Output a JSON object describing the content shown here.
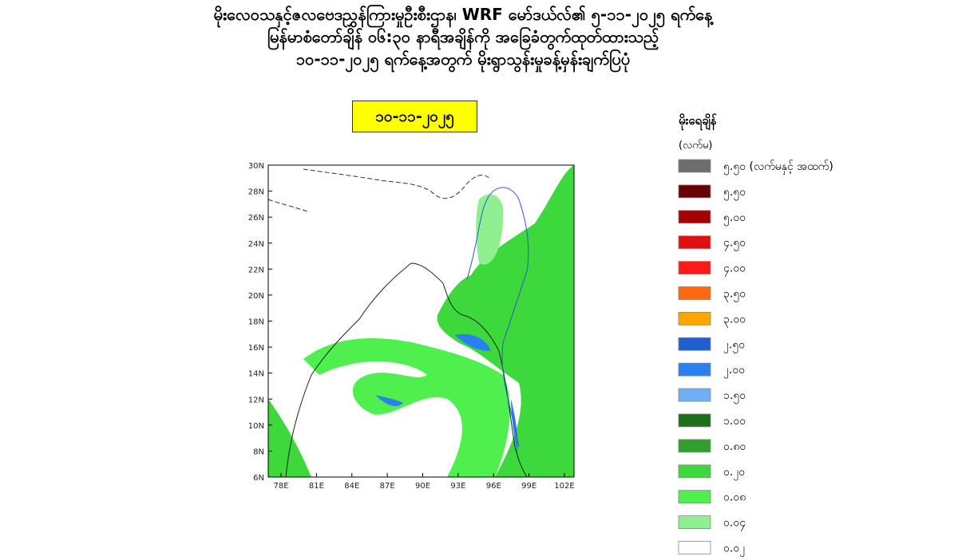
{
  "header": {
    "title_lines": [
      "မိုးလေဝသနှင့်ဇလဗေဒညွှန်ကြားမှုဦးစီးဌာန၊ WRF မော်ဒယ်လ်၏ ၅-၁၁-၂၀၂၅ ရက်နေ့",
      "မြန်မာစံတော်ချိန် ၀၆:၃၀ နာရီအချိန်ကို အခြေခံတွက်ထုတ်ထားသည့်",
      "၁၀-၁၁-၂၀၂၅ ရက်နေ့အတွက် မိုးရွာသွန်းမှုခန့်မှန်းချက်ပြပုံ"
    ]
  },
  "date": "၁၀-၁၁-၂၀၂၅",
  "legend": {
    "title": "မိုးရေချိန်",
    "unit": "(လက်မ)",
    "items": [
      {
        "label": "၅.၅၀ (လက်မနှင့် အထက်)",
        "color": "#6e6e6e"
      },
      {
        "label": "၅.၅၀",
        "color": "#6b0000"
      },
      {
        "label": "၅.၀၀",
        "color": "#a50000"
      },
      {
        "label": "၄.၅၀",
        "color": "#e01010"
      },
      {
        "label": "၄.၀၀",
        "color": "#ff1a1a"
      },
      {
        "label": "၃.၅၀",
        "color": "#ff6a10"
      },
      {
        "label": "၃.၀၀",
        "color": "#ffa500"
      },
      {
        "label": "၂.၅၀",
        "color": "#1f5fd0"
      },
      {
        "label": "၂.၀၀",
        "color": "#2b7ff0"
      },
      {
        "label": "၁.၅၀",
        "color": "#6fb0f5"
      },
      {
        "label": "၁.၀၀",
        "color": "#1e6e1e"
      },
      {
        "label": "၀.၈၀",
        "color": "#2fa02f"
      },
      {
        "label": "၀.၂၀",
        "color": "#3cd83c"
      },
      {
        "label": "၀.၀၈",
        "color": "#4ef04e"
      },
      {
        "label": "၀.၀၄",
        "color": "#8ef08e"
      },
      {
        "label": "၀.၀၂",
        "color": "#ffffff"
      }
    ]
  },
  "map": {
    "lat_labels": [
      "30N",
      "28N",
      "26N",
      "24N",
      "22N",
      "20N",
      "18N",
      "16N",
      "14N",
      "12N",
      "10N",
      "8N",
      "6N"
    ],
    "lon_labels": [
      "78E",
      "81E",
      "84E",
      "87E",
      "90E",
      "93E",
      "96E",
      "99E",
      "102E"
    ]
  }
}
